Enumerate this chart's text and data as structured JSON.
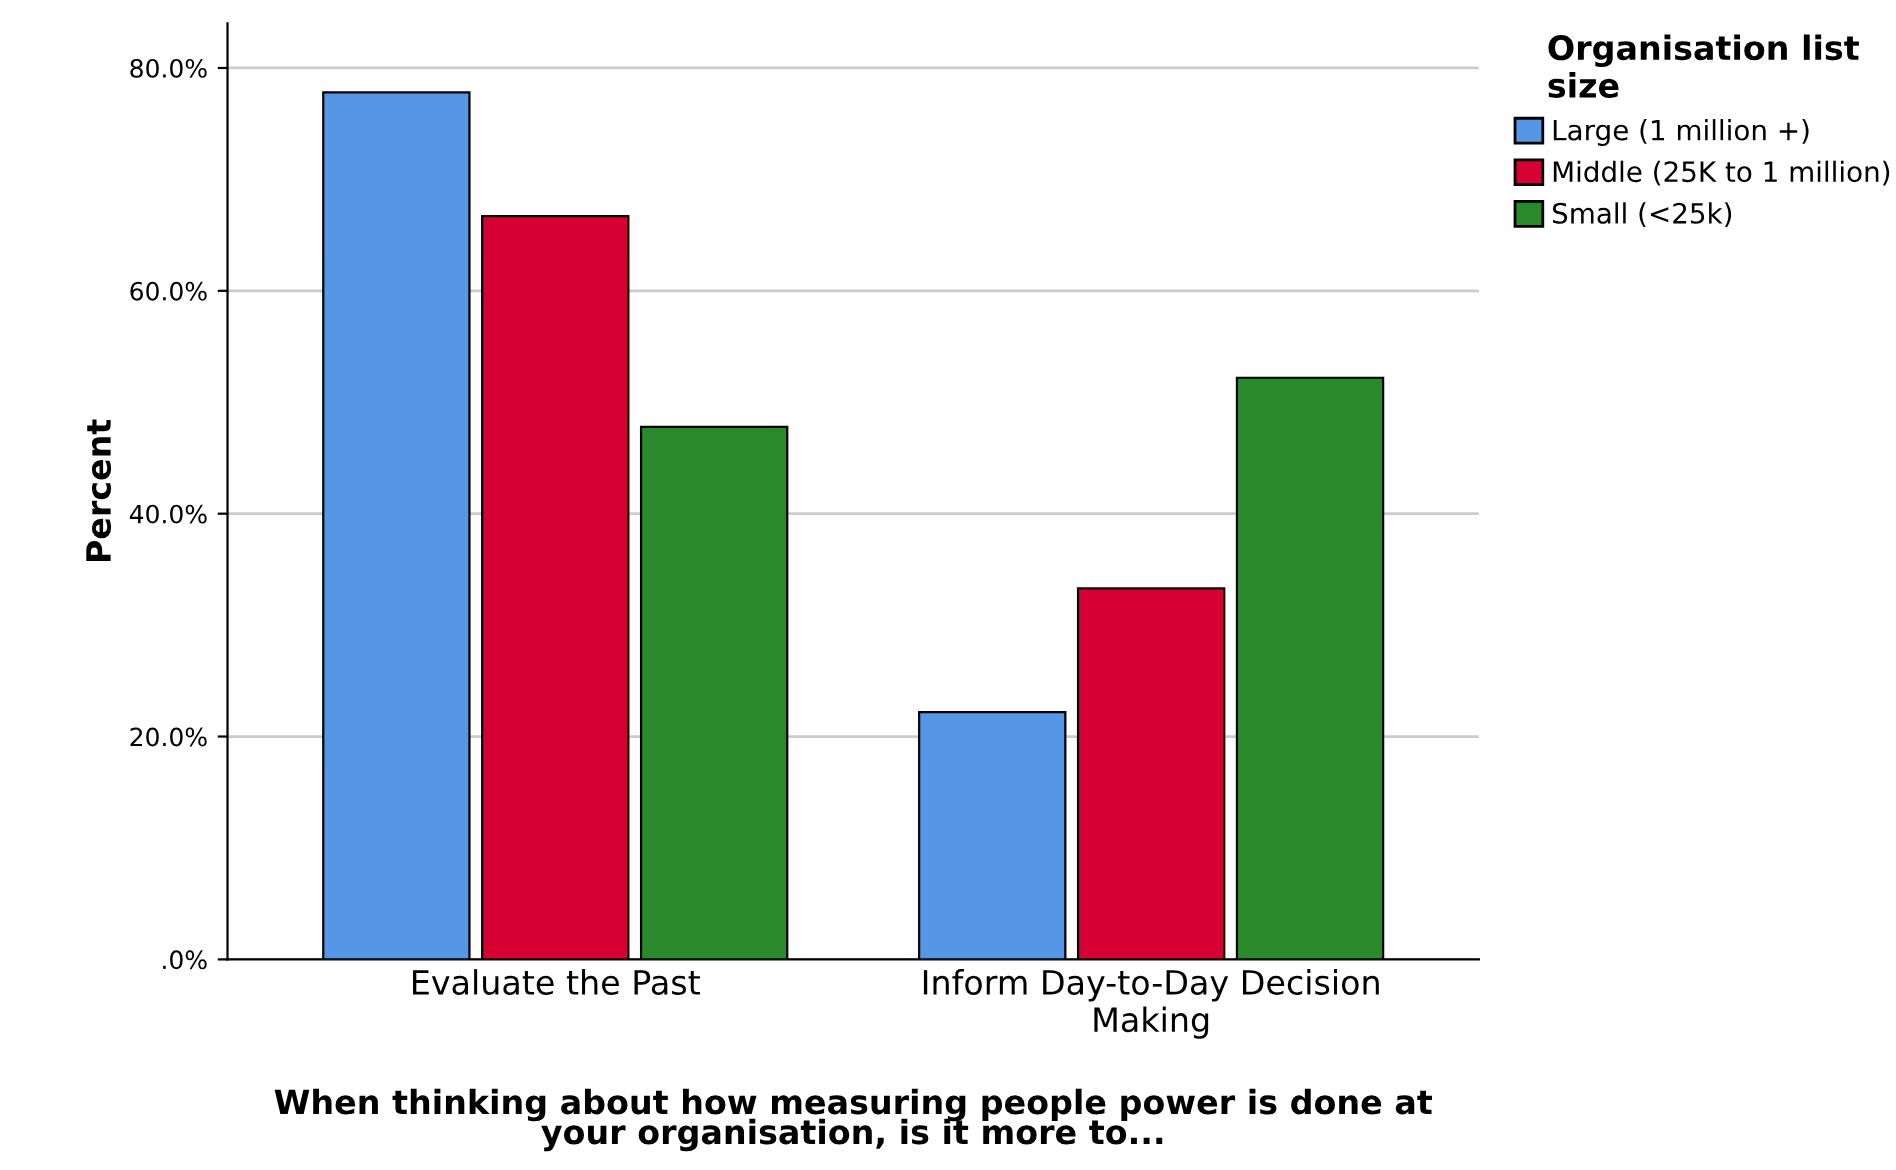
{
  "chart_data": {
    "type": "bar",
    "xlabel": "When thinking about how measuring people power is done at\nyour organisation, is it more to...",
    "ylabel": "Percent",
    "legend_title": "Organisation list\nsize",
    "categories": [
      "Evaluate the Past",
      "Inform Day-to-Day Decision\nMaking"
    ],
    "series": [
      {
        "name": "Large (1 million +)",
        "color": "#5596e6",
        "values": [
          77.8,
          22.2
        ]
      },
      {
        "name": "Middle (25K to 1 million)",
        "color": "#d60032",
        "values": [
          66.7,
          33.3
        ]
      },
      {
        "name": "Small (<25k)",
        "color": "#2a8a2b",
        "values": [
          47.8,
          52.2
        ]
      }
    ],
    "ylim": [
      0,
      84
    ],
    "yticks": [
      {
        "value": 0,
        "label": ".0%"
      },
      {
        "value": 20,
        "label": "20.0%"
      },
      {
        "value": 40,
        "label": "40.0%"
      },
      {
        "value": 60,
        "label": "60.0%"
      },
      {
        "value": 80,
        "label": "80.0%"
      }
    ],
    "grid": "y",
    "legend": "top right"
  }
}
